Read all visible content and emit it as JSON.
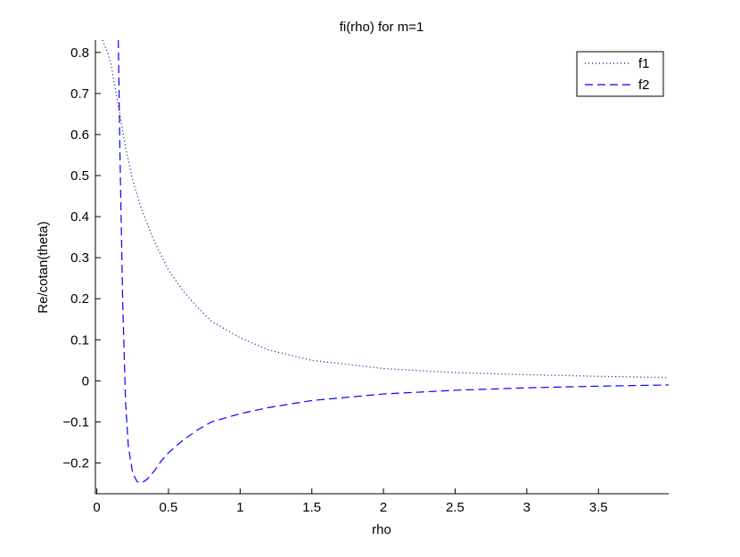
{
  "chart_data": {
    "type": "line",
    "title": "fi(rho) for m=1",
    "xlabel": "rho",
    "ylabel": "Re/cotan(theta)",
    "xlim": [
      -0.01,
      3.99
    ],
    "ylim": [
      -0.275,
      0.83
    ],
    "xticks": [
      0,
      0.5,
      1,
      1.5,
      2,
      2.5,
      3,
      3.5
    ],
    "xtick_labels": [
      "0",
      "0.5",
      "1",
      "1.5",
      "2",
      "2.5",
      "3",
      "3.5"
    ],
    "yticks": [
      -0.2,
      -0.1,
      0,
      0.1,
      0.2,
      0.3,
      0.4,
      0.5,
      0.6,
      0.7,
      0.8
    ],
    "ytick_labels": [
      "−0.2",
      "−0.1",
      "0",
      "0.1",
      "0.2",
      "0.3",
      "0.4",
      "0.5",
      "0.6",
      "0.7",
      "0.8"
    ],
    "grid": false,
    "legend_position": "top-right",
    "series": [
      {
        "name": "f1",
        "color": "#000080",
        "style": "dotted",
        "x": [
          0.04,
          0.08,
          0.1,
          0.15,
          0.2,
          0.25,
          0.3,
          0.4,
          0.5,
          0.6,
          0.7,
          0.8,
          1.0,
          1.2,
          1.5,
          2.0,
          2.5,
          3.0,
          3.5,
          3.99
        ],
        "y": [
          0.83,
          0.795,
          0.77,
          0.67,
          0.57,
          0.49,
          0.43,
          0.34,
          0.27,
          0.22,
          0.18,
          0.145,
          0.105,
          0.075,
          0.05,
          0.03,
          0.02,
          0.015,
          0.011,
          0.008
        ]
      },
      {
        "name": "f2",
        "color": "#0000ff",
        "style": "dashed",
        "x": [
          0.15,
          0.16,
          0.18,
          0.2,
          0.22,
          0.25,
          0.28,
          0.3,
          0.32,
          0.35,
          0.4,
          0.45,
          0.5,
          0.6,
          0.7,
          0.8,
          1.0,
          1.2,
          1.5,
          2.0,
          2.5,
          3.0,
          3.5,
          3.99
        ],
        "y": [
          0.83,
          0.58,
          0.2,
          -0.05,
          -0.16,
          -0.225,
          -0.245,
          -0.248,
          -0.247,
          -0.24,
          -0.22,
          -0.195,
          -0.175,
          -0.145,
          -0.12,
          -0.1,
          -0.08,
          -0.065,
          -0.048,
          -0.032,
          -0.023,
          -0.017,
          -0.013,
          -0.01
        ]
      }
    ]
  }
}
